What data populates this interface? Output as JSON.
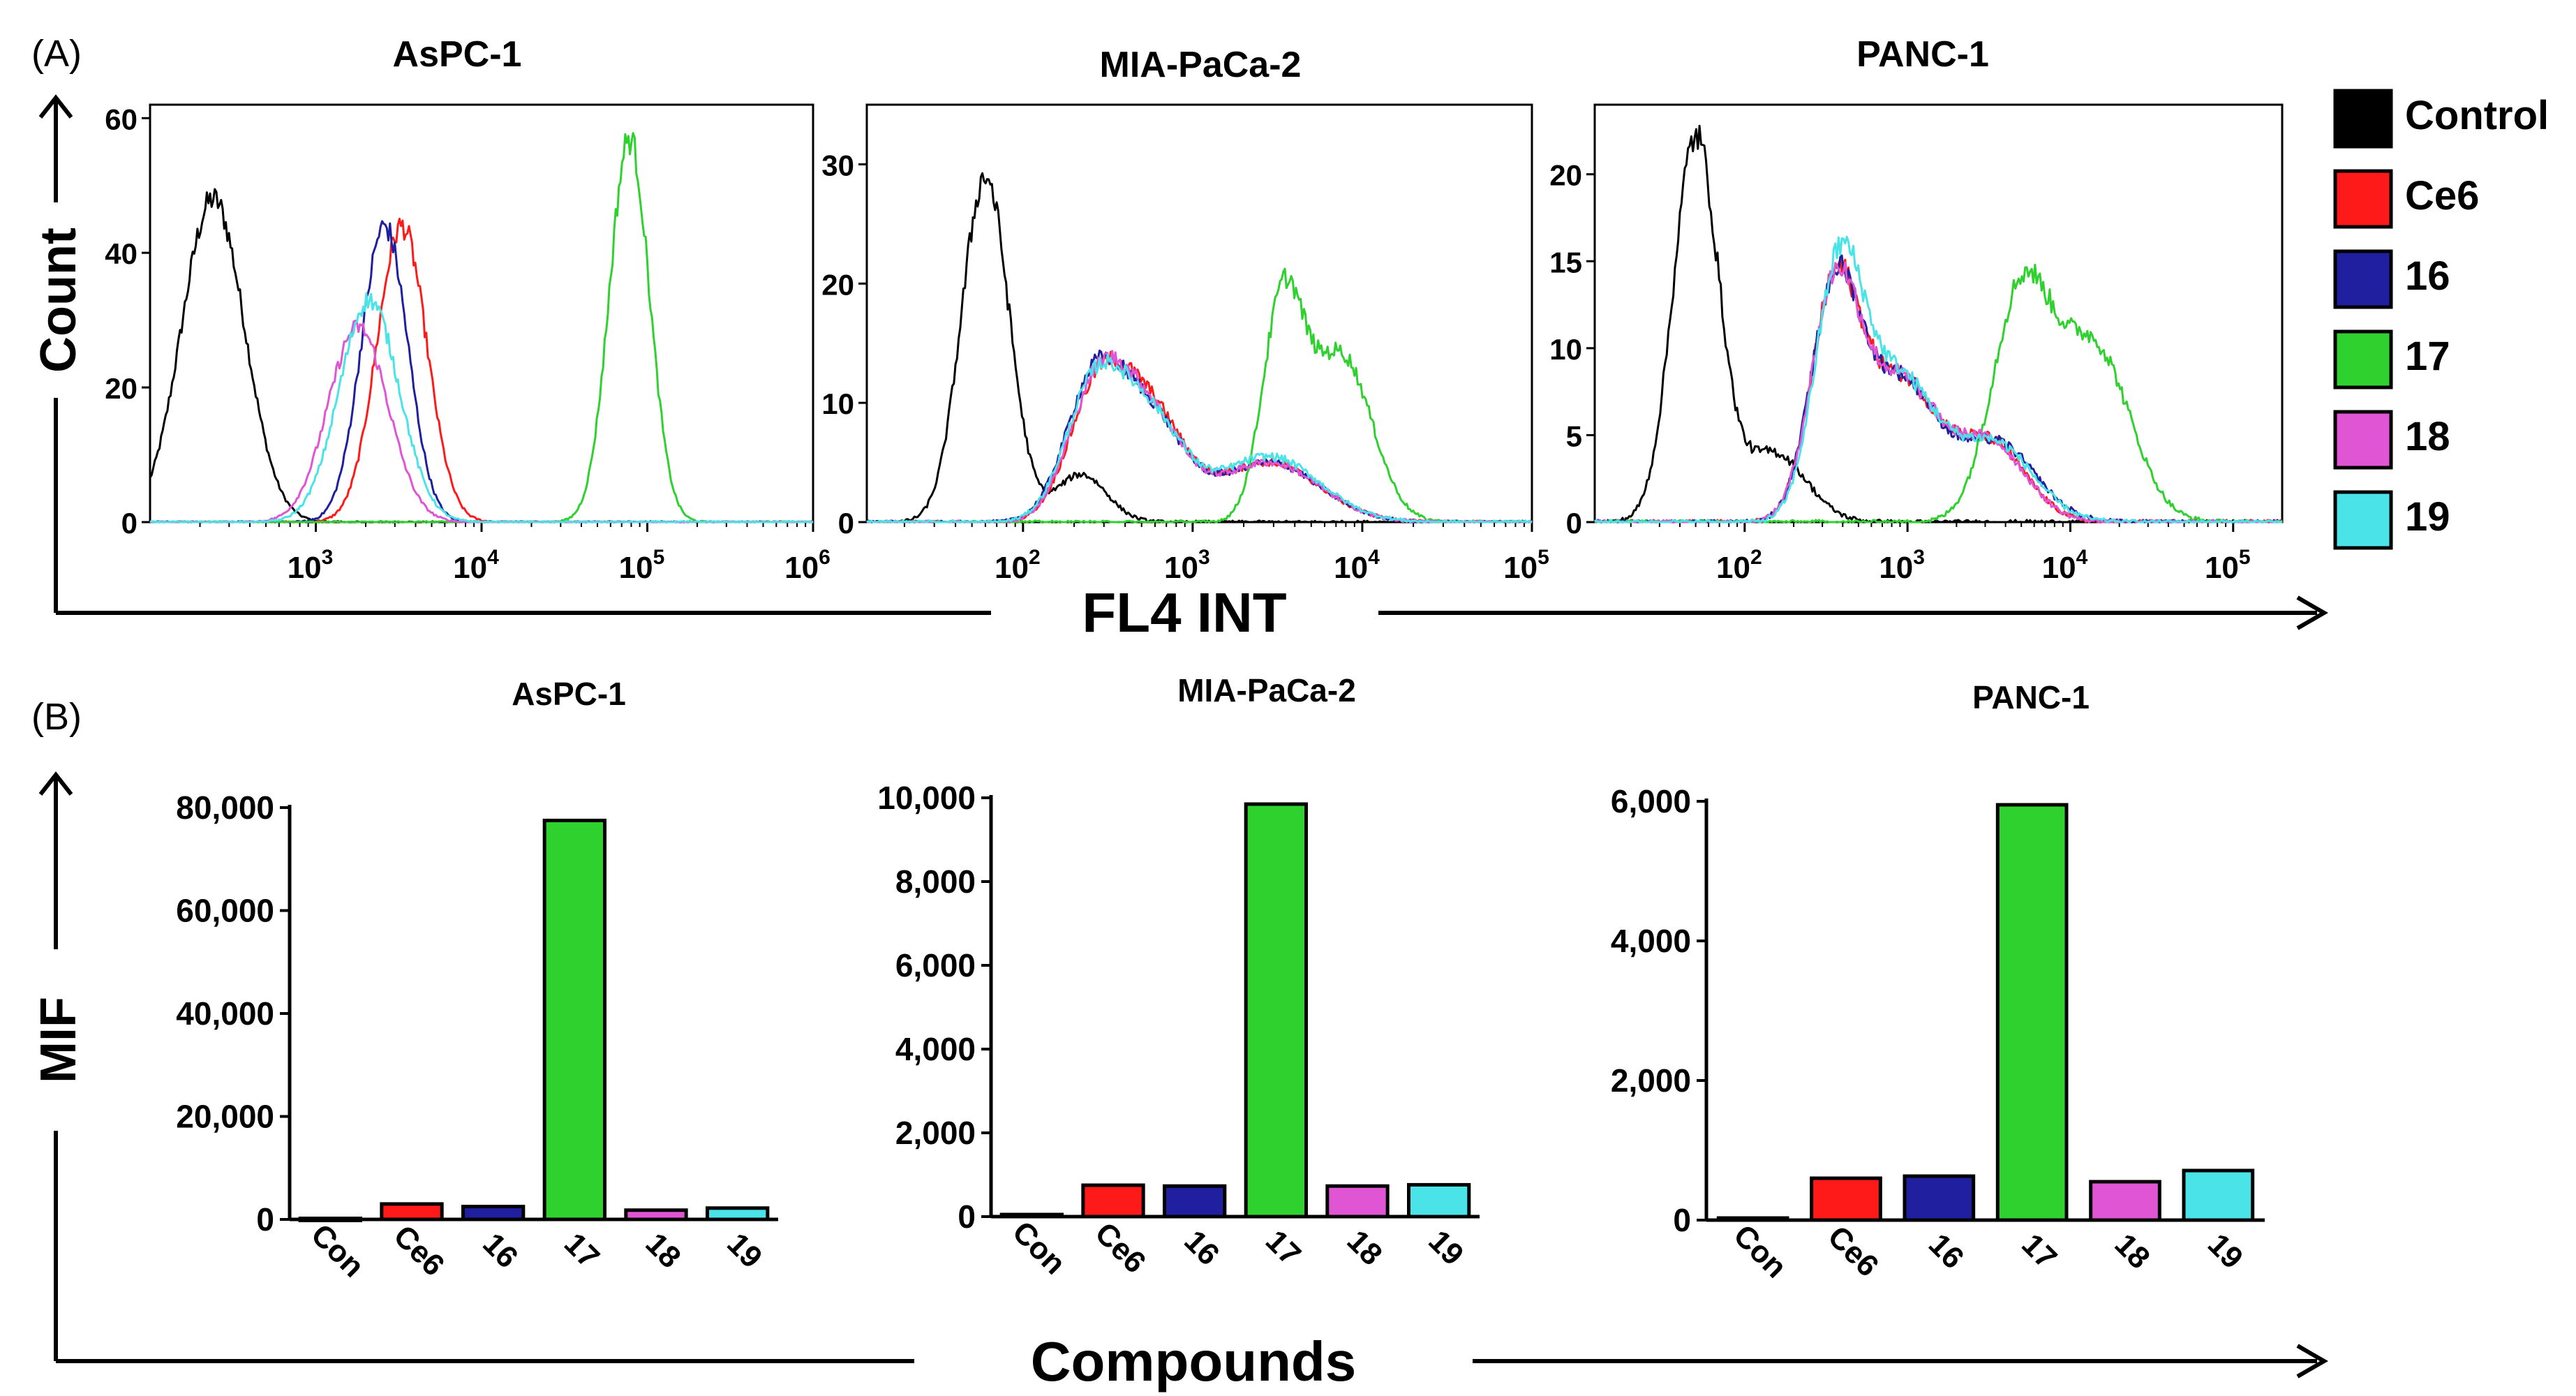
{
  "figure": {
    "panel_a_label": "(A)",
    "panel_b_label": "(B)",
    "a_xaxis_label": "FL4 INT",
    "a_yaxis_label": "Count",
    "b_xaxis_label": "Compounds",
    "b_yaxis_label": "MIF"
  },
  "legend": [
    {
      "label": "Control",
      "color": "#000000"
    },
    {
      "label": "Ce6",
      "color": "#ff1a1a"
    },
    {
      "label": "16",
      "color": "#1f1fa0"
    },
    {
      "label": "17",
      "color": "#2ed12e"
    },
    {
      "label": "18",
      "color": "#e055d4"
    },
    {
      "label": "19",
      "color": "#49e3e8"
    }
  ],
  "chart_data": [
    {
      "type": "line",
      "subtype": "flow-cytometry-histogram",
      "title": "AsPC-1",
      "xscale": "log",
      "xlim": [
        100,
        1000000
      ],
      "ylim": [
        0,
        62
      ],
      "xticks": [
        1000,
        10000,
        100000,
        1000000
      ],
      "xtick_exponents": [
        "3",
        "4",
        "5",
        "6"
      ],
      "yticks": [
        0,
        20,
        40,
        60
      ],
      "series": [
        {
          "name": "Control",
          "color": "#000000",
          "peaks": [
            {
              "center": 240,
              "height": 48,
              "width": 0.19
            }
          ]
        },
        {
          "name": "Ce6",
          "color": "#ff1a1a",
          "peaks": [
            {
              "center": 3300,
              "height": 44,
              "width": 0.15
            }
          ]
        },
        {
          "name": "16",
          "color": "#1f1fa0",
          "peaks": [
            {
              "center": 2600,
              "height": 44,
              "width": 0.14
            }
          ]
        },
        {
          "name": "17",
          "color": "#2ed12e",
          "peaks": [
            {
              "center": 78000,
              "height": 57,
              "width": 0.12
            }
          ]
        },
        {
          "name": "18",
          "color": "#e055d4",
          "peaks": [
            {
              "center": 1800,
              "height": 29,
              "width": 0.18
            }
          ]
        },
        {
          "name": "19",
          "color": "#49e3e8",
          "peaks": [
            {
              "center": 2100,
              "height": 33,
              "width": 0.18
            }
          ]
        }
      ]
    },
    {
      "type": "line",
      "subtype": "flow-cytometry-histogram",
      "title": "MIA-PaCa-2",
      "xscale": "log",
      "xlim": [
        12,
        100000
      ],
      "ylim": [
        0,
        35
      ],
      "xticks": [
        100,
        1000,
        10000,
        100000
      ],
      "xtick_exponents": [
        "2",
        "3",
        "4",
        "5"
      ],
      "yticks": [
        0,
        10,
        20,
        30
      ],
      "series": [
        {
          "name": "Control",
          "color": "#000000",
          "peaks": [
            {
              "center": 60,
              "height": 29,
              "width": 0.14
            },
            {
              "center": 220,
              "height": 4,
              "width": 0.15
            }
          ]
        },
        {
          "name": "Ce6",
          "color": "#ff1a1a",
          "peaks": [
            {
              "center": 270,
              "height": 10,
              "width": 0.17
            },
            {
              "center": 550,
              "height": 9,
              "width": 0.2
            },
            {
              "center": 2800,
              "height": 5,
              "width": 0.3
            }
          ]
        },
        {
          "name": "16",
          "color": "#1f1fa0",
          "peaks": [
            {
              "center": 260,
              "height": 11,
              "width": 0.17
            },
            {
              "center": 550,
              "height": 8.5,
              "width": 0.2
            },
            {
              "center": 2800,
              "height": 5,
              "width": 0.3
            }
          ]
        },
        {
          "name": "17",
          "color": "#2ed12e",
          "peaks": [
            {
              "center": 3400,
              "height": 18,
              "width": 0.12
            },
            {
              "center": 7500,
              "height": 14,
              "width": 0.18
            }
          ]
        },
        {
          "name": "18",
          "color": "#e055d4",
          "peaks": [
            {
              "center": 270,
              "height": 10.5,
              "width": 0.17
            },
            {
              "center": 550,
              "height": 8.5,
              "width": 0.2
            },
            {
              "center": 2800,
              "height": 5,
              "width": 0.3
            }
          ]
        },
        {
          "name": "19",
          "color": "#49e3e8",
          "peaks": [
            {
              "center": 260,
              "height": 10.5,
              "width": 0.17
            },
            {
              "center": 550,
              "height": 8.5,
              "width": 0.2
            },
            {
              "center": 2800,
              "height": 5.5,
              "width": 0.3
            }
          ]
        }
      ]
    },
    {
      "type": "line",
      "subtype": "flow-cytometry-histogram",
      "title": "PANC-1",
      "xscale": "log",
      "xlim": [
        12,
        200000
      ],
      "ylim": [
        0,
        24
      ],
      "xticks": [
        100,
        1000,
        10000,
        100000
      ],
      "xtick_exponents": [
        "2",
        "3",
        "4",
        "5"
      ],
      "yticks": [
        0,
        5,
        10,
        15,
        20
      ],
      "series": [
        {
          "name": "Control",
          "color": "#000000",
          "peaks": [
            {
              "center": 50,
              "height": 22,
              "width": 0.14
            },
            {
              "center": 150,
              "height": 4,
              "width": 0.2
            }
          ]
        },
        {
          "name": "Ce6",
          "color": "#ff1a1a",
          "peaks": [
            {
              "center": 360,
              "height": 13,
              "width": 0.15
            },
            {
              "center": 900,
              "height": 8,
              "width": 0.22
            },
            {
              "center": 3200,
              "height": 4.5,
              "width": 0.22
            }
          ]
        },
        {
          "name": "16",
          "color": "#1f1fa0",
          "peaks": [
            {
              "center": 360,
              "height": 13,
              "width": 0.15
            },
            {
              "center": 900,
              "height": 8,
              "width": 0.22
            },
            {
              "center": 3500,
              "height": 4.5,
              "width": 0.24
            }
          ]
        },
        {
          "name": "17",
          "color": "#2ed12e",
          "peaks": [
            {
              "center": 5000,
              "height": 13,
              "width": 0.18
            },
            {
              "center": 14000,
              "height": 10,
              "width": 0.22
            }
          ]
        },
        {
          "name": "18",
          "color": "#e055d4",
          "peaks": [
            {
              "center": 360,
              "height": 13,
              "width": 0.15
            },
            {
              "center": 900,
              "height": 8,
              "width": 0.22
            },
            {
              "center": 3200,
              "height": 4.5,
              "width": 0.22
            }
          ]
        },
        {
          "name": "19",
          "color": "#49e3e8",
          "peaks": [
            {
              "center": 380,
              "height": 14,
              "width": 0.15
            },
            {
              "center": 900,
              "height": 8,
              "width": 0.22
            },
            {
              "center": 3400,
              "height": 4.5,
              "width": 0.24
            }
          ]
        }
      ]
    },
    {
      "type": "bar",
      "title": "AsPC-1",
      "categories": [
        "Con",
        "Ce6",
        "16",
        "17",
        "18",
        "19"
      ],
      "values": [
        200,
        3000,
        2500,
        77500,
        1800,
        2200
      ],
      "colors": [
        "#000000",
        "#ff1a1a",
        "#1f1fa0",
        "#2ed12e",
        "#e055d4",
        "#49e3e8"
      ],
      "ylim": [
        0,
        80000
      ],
      "yticks": [
        0,
        20000,
        40000,
        60000,
        80000
      ],
      "ytick_labels": [
        "0",
        "20,000",
        "40,000",
        "60,000",
        "80,000"
      ]
    },
    {
      "type": "bar",
      "title": "MIA-PaCa-2",
      "categories": [
        "Con",
        "Ce6",
        "16",
        "17",
        "18",
        "19"
      ],
      "values": [
        50,
        750,
        730,
        9850,
        730,
        760
      ],
      "colors": [
        "#000000",
        "#ff1a1a",
        "#1f1fa0",
        "#2ed12e",
        "#e055d4",
        "#49e3e8"
      ],
      "ylim": [
        0,
        10000
      ],
      "yticks": [
        0,
        2000,
        4000,
        6000,
        8000,
        10000
      ],
      "ytick_labels": [
        "0",
        "2,000",
        "4,000",
        "6,000",
        "8,000",
        "10,000"
      ]
    },
    {
      "type": "bar",
      "title": "PANC-1",
      "categories": [
        "Con",
        "Ce6",
        "16",
        "17",
        "18",
        "19"
      ],
      "values": [
        30,
        600,
        630,
        5950,
        550,
        710
      ],
      "colors": [
        "#000000",
        "#ff1a1a",
        "#1f1fa0",
        "#2ed12e",
        "#e055d4",
        "#49e3e8"
      ],
      "ylim": [
        0,
        6000
      ],
      "yticks": [
        0,
        2000,
        4000,
        6000
      ],
      "ytick_labels": [
        "0",
        "2,000",
        "4,000",
        "6,000"
      ]
    }
  ]
}
